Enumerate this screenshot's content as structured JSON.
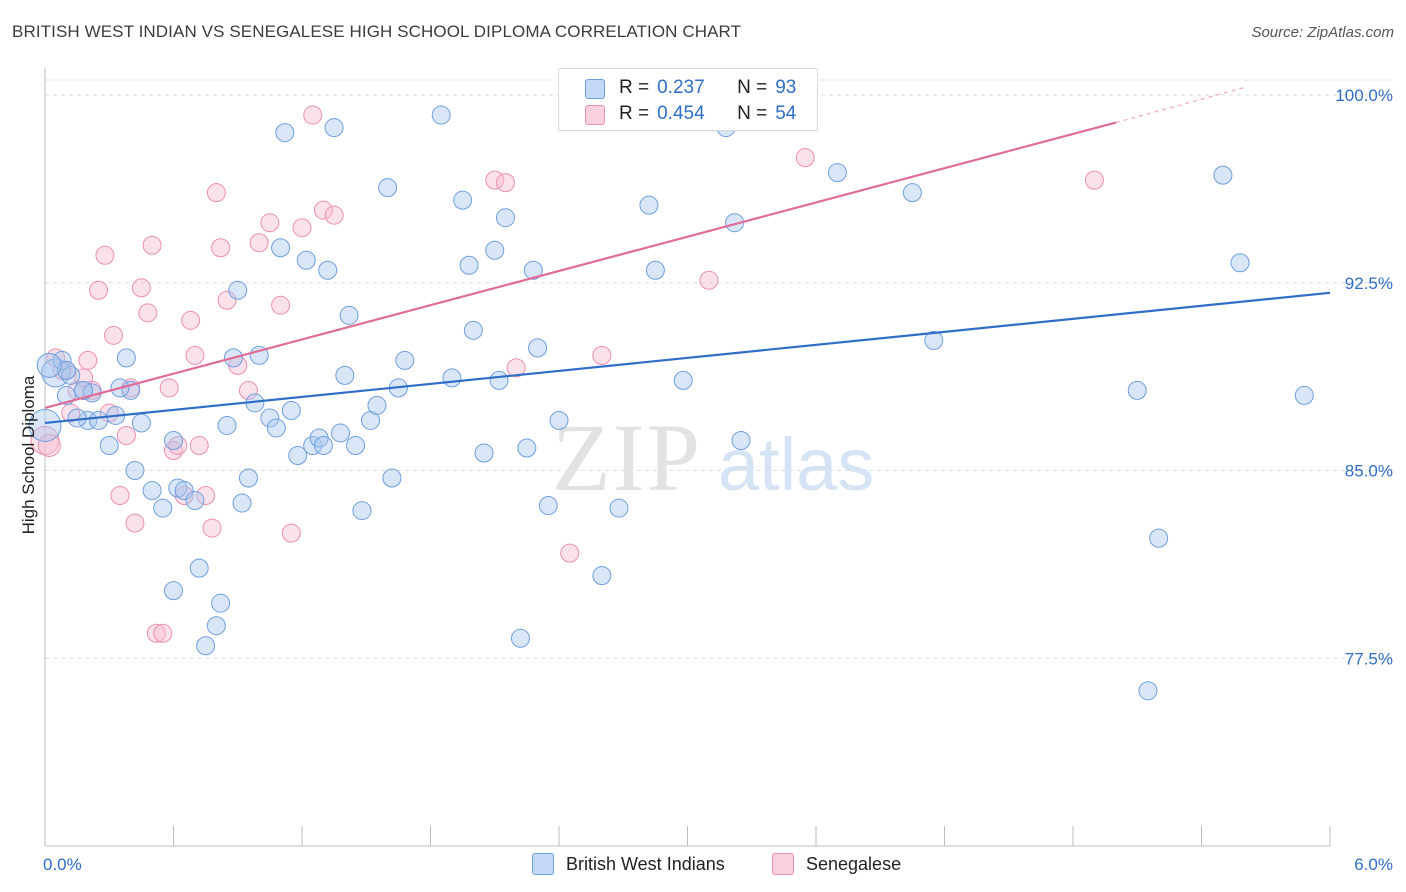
{
  "title": "BRITISH WEST INDIAN VS SENEGALESE HIGH SCHOOL DIPLOMA CORRELATION CHART",
  "source": "Source: ZipAtlas.com",
  "legend": {
    "rows": [
      {
        "r_label": "R =",
        "r_value": "0.237",
        "n_label": "N =",
        "n_value": "93"
      },
      {
        "r_label": "R =",
        "r_value": "0.454",
        "n_label": "N =",
        "n_value": "54"
      }
    ]
  },
  "bottom_legend": [
    "British West Indians",
    "Senegalese"
  ],
  "watermark": {
    "zip": "ZIP",
    "atlas": "atlas"
  },
  "colors": {
    "blue_fill": "#a9c8f0",
    "blue_stroke": "#6f9fde",
    "blue_line": "#2f6ec7",
    "pink_fill": "#f6bcd0",
    "pink_stroke": "#ec8fb0",
    "pink_line": "#e06d97",
    "axis_label": "#2f6ec7",
    "grid": "#dedede"
  },
  "chart_data": {
    "type": "scatter",
    "title": "BRITISH WEST INDIAN VS SENEGALESE HIGH SCHOOL DIPLOMA CORRELATION CHART",
    "xlabel": "",
    "ylabel": "High School Diploma",
    "xlim": [
      0.0,
      6.0
    ],
    "ylim": [
      70.0,
      101.0
    ],
    "x_tick_labels": [
      "0.0%",
      "6.0%"
    ],
    "y_ticks": [
      77.5,
      85.0,
      92.5,
      100.0
    ],
    "y_tick_labels": [
      "77.5%",
      "85.0%",
      "92.5%",
      "100.0%"
    ],
    "grid": "horizontal dashed",
    "series": [
      {
        "name": "British West Indians",
        "color": "#6f9fde",
        "trend": {
          "x": [
            0.0,
            6.0
          ],
          "y": [
            86.9,
            92.1
          ]
        },
        "points": [
          [
            0.05,
            88.9
          ],
          [
            0.12,
            88.8
          ],
          [
            0.08,
            89.4
          ],
          [
            0.1,
            89.0
          ],
          [
            0.18,
            88.2
          ],
          [
            0.2,
            87.0
          ],
          [
            0.22,
            88.1
          ],
          [
            0.25,
            87.0
          ],
          [
            0.15,
            87.1
          ],
          [
            0.3,
            86.0
          ],
          [
            0.33,
            87.2
          ],
          [
            0.38,
            89.5
          ],
          [
            0.4,
            88.2
          ],
          [
            0.42,
            85.0
          ],
          [
            0.45,
            86.9
          ],
          [
            0.5,
            84.2
          ],
          [
            0.55,
            83.5
          ],
          [
            0.6,
            86.2
          ],
          [
            0.62,
            84.3
          ],
          [
            0.65,
            84.2
          ],
          [
            0.7,
            83.8
          ],
          [
            0.72,
            81.1
          ],
          [
            0.6,
            80.2
          ],
          [
            0.75,
            78.0
          ],
          [
            0.8,
            78.8
          ],
          [
            0.82,
            79.7
          ],
          [
            0.85,
            86.8
          ],
          [
            0.88,
            89.5
          ],
          [
            0.9,
            92.2
          ],
          [
            0.92,
            83.7
          ],
          [
            0.95,
            84.7
          ],
          [
            0.98,
            87.7
          ],
          [
            1.0,
            89.6
          ],
          [
            1.05,
            87.1
          ],
          [
            1.08,
            86.7
          ],
          [
            1.1,
            93.9
          ],
          [
            1.12,
            98.5
          ],
          [
            1.15,
            87.4
          ],
          [
            1.18,
            85.6
          ],
          [
            1.22,
            93.4
          ],
          [
            1.25,
            86.0
          ],
          [
            1.28,
            86.3
          ],
          [
            1.3,
            86.0
          ],
          [
            1.32,
            93.0
          ],
          [
            1.35,
            98.7
          ],
          [
            1.38,
            86.5
          ],
          [
            1.4,
            88.8
          ],
          [
            1.42,
            91.2
          ],
          [
            1.45,
            86.0
          ],
          [
            1.48,
            83.4
          ],
          [
            1.52,
            87.0
          ],
          [
            1.55,
            87.6
          ],
          [
            1.6,
            96.3
          ],
          [
            1.62,
            84.7
          ],
          [
            1.65,
            88.3
          ],
          [
            1.68,
            89.4
          ],
          [
            1.85,
            99.2
          ],
          [
            1.9,
            88.7
          ],
          [
            1.95,
            95.8
          ],
          [
            1.98,
            93.2
          ],
          [
            2.0,
            90.6
          ],
          [
            2.05,
            85.7
          ],
          [
            2.1,
            93.8
          ],
          [
            2.12,
            88.6
          ],
          [
            2.15,
            95.1
          ],
          [
            2.22,
            78.3
          ],
          [
            2.25,
            85.9
          ],
          [
            2.28,
            93.0
          ],
          [
            2.3,
            89.9
          ],
          [
            2.35,
            83.6
          ],
          [
            2.4,
            87.0
          ],
          [
            2.6,
            80.8
          ],
          [
            2.68,
            83.5
          ],
          [
            2.82,
            95.6
          ],
          [
            2.85,
            93.0
          ],
          [
            2.98,
            88.6
          ],
          [
            3.18,
            98.7
          ],
          [
            3.22,
            94.9
          ],
          [
            3.25,
            86.2
          ],
          [
            3.7,
            96.9
          ],
          [
            4.05,
            96.1
          ],
          [
            4.15,
            90.2
          ],
          [
            5.1,
            88.2
          ],
          [
            5.15,
            76.2
          ],
          [
            5.2,
            82.3
          ],
          [
            5.5,
            96.8
          ],
          [
            5.58,
            93.3
          ],
          [
            5.88,
            88.0
          ],
          [
            0.0,
            86.8
          ],
          [
            0.02,
            89.2
          ],
          [
            0.35,
            88.3
          ],
          [
            0.18,
            88.2
          ],
          [
            0.1,
            88.0
          ]
        ],
        "radii": [
          14,
          9,
          9,
          9,
          9,
          9,
          9,
          9,
          9,
          9,
          9,
          9,
          9,
          9,
          9,
          9,
          9,
          9,
          9,
          9,
          9,
          9,
          9,
          9,
          9,
          9,
          9,
          9,
          9,
          9,
          9,
          9,
          9,
          9,
          9,
          9,
          9,
          9,
          9,
          9,
          9,
          9,
          9,
          9,
          9,
          9,
          9,
          9,
          9,
          9,
          9,
          9,
          9,
          9,
          9,
          9,
          9,
          9,
          9,
          9,
          9,
          9,
          9,
          9,
          9,
          9,
          9,
          9,
          9,
          9,
          9,
          9,
          9,
          9,
          9,
          9,
          9,
          9,
          9,
          9,
          9,
          9,
          9,
          9,
          9,
          9,
          9,
          9,
          16,
          12,
          9,
          9,
          9
        ]
      },
      {
        "name": "Senegalese",
        "color": "#ec8fb0",
        "trend": {
          "x": [
            0.0,
            5.0
          ],
          "y": [
            87.5,
            98.9
          ]
        },
        "trend_dashed": {
          "x": [
            5.0,
            5.6
          ],
          "y": [
            98.9,
            100.3
          ]
        },
        "points": [
          [
            0.0,
            86.2
          ],
          [
            0.05,
            89.5
          ],
          [
            0.1,
            89.0
          ],
          [
            0.12,
            87.3
          ],
          [
            0.15,
            88.2
          ],
          [
            0.18,
            88.7
          ],
          [
            0.2,
            89.4
          ],
          [
            0.22,
            88.2
          ],
          [
            0.25,
            92.2
          ],
          [
            0.28,
            93.6
          ],
          [
            0.3,
            87.3
          ],
          [
            0.32,
            90.4
          ],
          [
            0.35,
            84.0
          ],
          [
            0.38,
            86.4
          ],
          [
            0.4,
            88.3
          ],
          [
            0.42,
            82.9
          ],
          [
            0.45,
            92.3
          ],
          [
            0.48,
            91.3
          ],
          [
            0.5,
            94.0
          ],
          [
            0.52,
            78.5
          ],
          [
            0.55,
            78.5
          ],
          [
            0.58,
            88.3
          ],
          [
            0.6,
            85.8
          ],
          [
            0.62,
            86.0
          ],
          [
            0.65,
            84.0
          ],
          [
            0.68,
            91.0
          ],
          [
            0.7,
            89.6
          ],
          [
            0.72,
            86.0
          ],
          [
            0.75,
            84.0
          ],
          [
            0.78,
            82.7
          ],
          [
            0.8,
            96.1
          ],
          [
            0.82,
            93.9
          ],
          [
            0.85,
            91.8
          ],
          [
            0.9,
            89.2
          ],
          [
            0.95,
            88.2
          ],
          [
            1.0,
            94.1
          ],
          [
            1.05,
            94.9
          ],
          [
            1.1,
            91.6
          ],
          [
            1.15,
            82.5
          ],
          [
            1.2,
            94.7
          ],
          [
            1.25,
            99.2
          ],
          [
            1.3,
            95.4
          ],
          [
            1.35,
            95.2
          ],
          [
            2.1,
            96.6
          ],
          [
            2.15,
            96.5
          ],
          [
            2.2,
            89.1
          ],
          [
            2.45,
            81.7
          ],
          [
            2.6,
            89.6
          ],
          [
            3.0,
            100.0
          ],
          [
            3.1,
            92.6
          ],
          [
            3.55,
            97.5
          ],
          [
            4.9,
            96.6
          ],
          [
            0.02,
            86.0
          ],
          [
            0.08,
            89.0
          ]
        ],
        "radii": [
          14,
          9,
          9,
          9,
          9,
          9,
          9,
          9,
          9,
          9,
          9,
          9,
          9,
          9,
          9,
          9,
          9,
          9,
          9,
          9,
          9,
          9,
          9,
          9,
          9,
          9,
          9,
          9,
          9,
          9,
          9,
          9,
          9,
          9,
          9,
          9,
          9,
          9,
          9,
          9,
          9,
          9,
          9,
          9,
          9,
          9,
          9,
          9,
          9,
          9,
          9,
          9,
          11,
          9
        ]
      }
    ]
  }
}
